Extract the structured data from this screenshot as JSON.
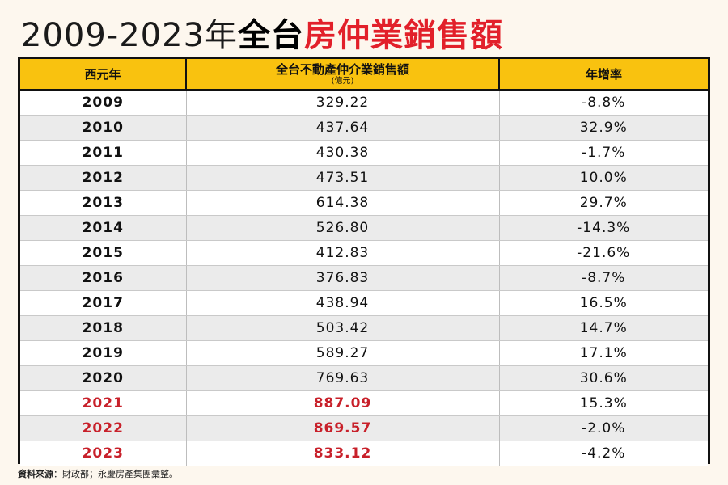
{
  "title": {
    "years": "2009-2023年",
    "bold": "全台",
    "red": "房仲業銷售額"
  },
  "table": {
    "headers": {
      "year": "西元年",
      "amount": "全台不動產仲介業銷售額",
      "amount_unit": "(億元)",
      "growth": "年增率"
    },
    "rows": [
      {
        "year": "2009",
        "amount": "329.22",
        "growth": "-8.8%"
      },
      {
        "year": "2010",
        "amount": "437.64",
        "growth": "32.9%"
      },
      {
        "year": "2011",
        "amount": "430.38",
        "growth": "-1.7%"
      },
      {
        "year": "2012",
        "amount": "473.51",
        "growth": "10.0%"
      },
      {
        "year": "2013",
        "amount": "614.38",
        "growth": "29.7%"
      },
      {
        "year": "2014",
        "amount": "526.80",
        "growth": "-14.3%"
      },
      {
        "year": "2015",
        "amount": "412.83",
        "growth": "-21.6%"
      },
      {
        "year": "2016",
        "amount": "376.83",
        "growth": "-8.7%"
      },
      {
        "year": "2017",
        "amount": "438.94",
        "growth": "16.5%"
      },
      {
        "year": "2018",
        "amount": "503.42",
        "growth": "14.7%"
      },
      {
        "year": "2019",
        "amount": "589.27",
        "growth": "17.1%"
      },
      {
        "year": "2020",
        "amount": "769.63",
        "growth": "30.6%"
      },
      {
        "year": "2021",
        "amount": "887.09",
        "growth": "15.3%"
      },
      {
        "year": "2022",
        "amount": "869.57",
        "growth": "-2.0%"
      },
      {
        "year": "2023",
        "amount": "833.12",
        "growth": "-4.2%"
      }
    ]
  },
  "source": {
    "label": "資料來源",
    "text": "：財政部；永慶房產集團彙整。"
  },
  "colors": {
    "header_bg": "#f9c20f",
    "title_red": "#e2202a",
    "highlight_red": "#c8202a",
    "page_bg": "#fdf7ee"
  }
}
